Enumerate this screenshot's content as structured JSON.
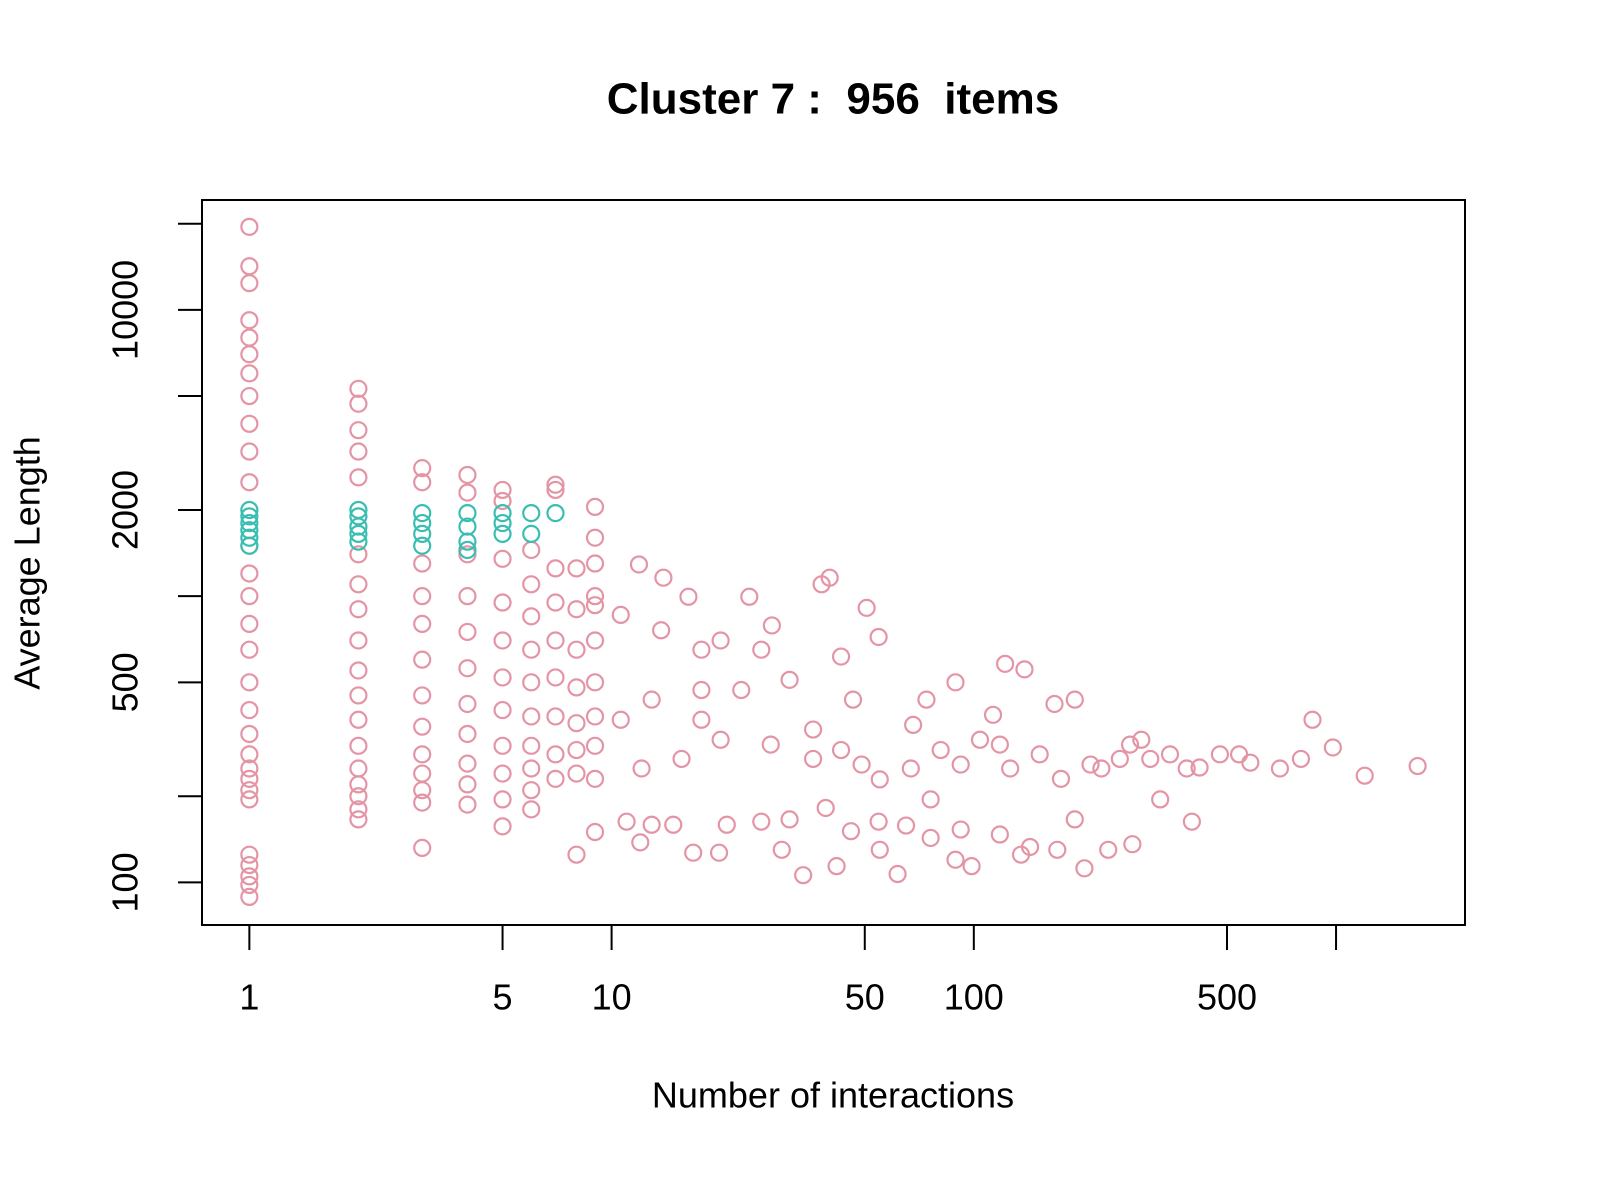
{
  "chart_data": {
    "type": "scatter",
    "title": "Cluster 7 :  956  items",
    "xlabel": "Number of interactions",
    "ylabel": "Average Length",
    "xlog": true,
    "ylog": true,
    "xlim": [
      0.74,
      2270
    ],
    "ylim": [
      71,
      24200
    ],
    "xticks": [
      1,
      5,
      10,
      50,
      100,
      500,
      {
        "value": 1000,
        "label": null
      }
    ],
    "yticks": [
      100,
      {
        "value": 200,
        "label": null
      },
      500,
      {
        "value": 1000,
        "label": null
      },
      2000,
      {
        "value": 5000,
        "label": null
      },
      10000,
      {
        "value": 20000,
        "label": null
      }
    ],
    "series": [
      {
        "color": "#e495a5",
        "x": [
          1,
          1,
          1,
          1,
          1,
          1,
          1,
          1,
          1,
          1,
          1,
          1,
          1,
          1,
          1,
          1,
          1,
          1,
          1,
          1,
          1,
          1,
          1,
          1,
          1,
          1,
          1,
          1,
          1,
          2,
          2,
          2,
          2,
          2,
          2,
          2,
          2,
          2,
          2,
          2,
          2,
          2,
          2,
          2,
          2,
          2,
          2,
          3,
          3,
          3,
          3,
          3,
          3,
          3,
          3,
          3,
          3,
          3,
          3,
          3,
          4,
          4,
          4,
          4,
          4,
          4,
          4,
          4,
          4,
          4,
          4,
          5,
          5,
          5,
          5,
          5,
          5,
          5,
          5,
          5,
          5,
          5,
          6,
          6,
          6,
          6,
          6,
          6,
          6,
          6,
          6,
          6,
          7,
          7,
          7,
          7,
          7,
          7,
          7,
          7,
          7,
          8,
          8,
          8,
          8,
          8,
          8,
          8,
          8,
          9,
          9,
          9,
          9,
          9,
          9,
          9,
          9,
          9,
          9,
          9,
          11.9,
          13.9,
          16.3,
          24,
          27.7,
          38,
          40,
          50.6,
          54.6,
          43,
          46.4,
          74,
          89,
          122,
          138,
          167,
          190,
          113,
          68,
          861,
          1680,
          1200,
          980,
          800,
          580,
          420,
          307,
          270,
          225,
          174,
          126,
          92,
          67,
          49,
          36,
          27.5,
          20,
          15.6,
          12.1,
          61.6,
          33.8,
          41.8,
          98.6,
          202,
          235,
          274,
          135,
          89,
          55,
          29.5,
          19.8,
          16.8,
          12,
          11,
          12.9,
          14.8,
          20.8,
          25.9,
          31,
          39,
          45.8,
          54.6,
          65,
          76,
          92,
          118,
          143,
          170,
          190,
          327,
          400,
          104,
          81,
          152,
          210,
          253,
          348,
          478,
          700,
          17.7,
          22.8,
          31,
          17.7,
          20,
          13.7,
          10.6,
          25.9,
          17.7,
          12.9,
          10.6,
          36,
          43,
          55,
          76,
          290,
          387,
          540,
          118
        ],
        "values": [
          19500,
          14200,
          12400,
          9200,
          8000,
          7000,
          6000,
          5000,
          4000,
          3200,
          2500,
          1500,
          1200,
          1000,
          800,
          650,
          500,
          400,
          330,
          280,
          250,
          230,
          210,
          195,
          125,
          115,
          105,
          98,
          89,
          5300,
          4700,
          3800,
          3200,
          2600,
          1400,
          1100,
          900,
          700,
          550,
          450,
          370,
          300,
          250,
          220,
          200,
          180,
          166,
          2800,
          2500,
          1300,
          1000,
          800,
          600,
          450,
          350,
          280,
          240,
          210,
          190,
          132,
          2650,
          2300,
          1400,
          1000,
          750,
          560,
          420,
          330,
          260,
          220,
          187,
          2350,
          2150,
          1350,
          950,
          700,
          520,
          400,
          300,
          240,
          195,
          157,
          1450,
          1100,
          850,
          650,
          500,
          380,
          300,
          250,
          210,
          180,
          2450,
          2350,
          1250,
          950,
          700,
          520,
          380,
          280,
          230,
          1250,
          900,
          650,
          480,
          360,
          290,
          240,
          125,
          2050,
          1600,
          1300,
          1000,
          930,
          700,
          500,
          380,
          300,
          230,
          150,
          1290,
          1160,
          995,
          995,
          790,
          1100,
          1160,
          910,
          720,
          615,
          435,
          435,
          500,
          580,
          555,
          420,
          435,
          385,
          355,
          370,
          255,
          236,
          296,
          270,
          262,
          252,
          270,
          303,
          250,
          230,
          250,
          258,
          250,
          258,
          270,
          303,
          315,
          270,
          250,
          107,
          106,
          114,
          114,
          112,
          130,
          136,
          125,
          120,
          130,
          130,
          127,
          127,
          138,
          163,
          159,
          159,
          159,
          163,
          166,
          182,
          151,
          163,
          158,
          143,
          153,
          147,
          133,
          130,
          166,
          195,
          163,
          315,
          290,
          280,
          258,
          270,
          280,
          280,
          250,
          370,
          470,
          510,
          650,
          700,
          760,
          860,
          650,
          470,
          435,
          370,
          342,
          290,
          229,
          195,
          315,
          250,
          280,
          303
        ]
      },
      {
        "color": "#39beb1",
        "x": [
          1,
          1,
          1,
          1,
          1,
          1,
          2,
          2,
          2,
          2,
          2,
          3,
          3,
          3,
          3,
          4,
          4,
          4,
          4,
          5,
          5,
          5,
          6,
          6,
          7
        ],
        "values": [
          1500,
          1600,
          1700,
          1800,
          1900,
          2000,
          1550,
          1650,
          1750,
          1900,
          2000,
          1500,
          1650,
          1800,
          1950,
          1450,
          1550,
          1750,
          1950,
          1650,
          1800,
          1950,
          1650,
          1950,
          1950
        ]
      }
    ]
  }
}
